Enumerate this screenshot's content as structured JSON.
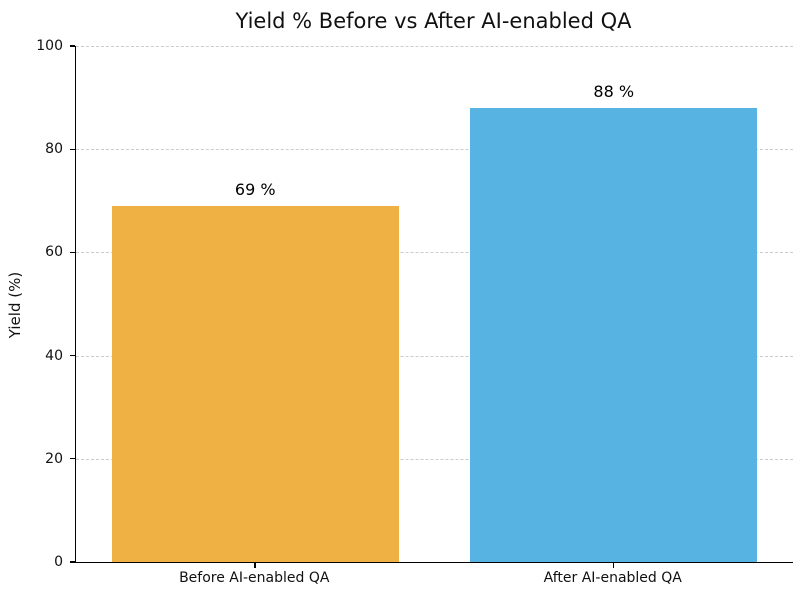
{
  "chart_data": {
    "type": "bar",
    "title": "Yield % Before vs After AI-enabled QA",
    "xlabel": "",
    "ylabel": "Yield (%)",
    "categories": [
      "Before AI-enabled QA",
      "After AI-enabled QA"
    ],
    "values": [
      69,
      88
    ],
    "value_labels": [
      "69 %",
      "88 %"
    ],
    "bar_colors": [
      "#F0B144",
      "#57B3E2"
    ],
    "ylim": [
      0,
      100
    ],
    "yticks": [
      0,
      20,
      40,
      60,
      80,
      100
    ],
    "grid": "horizontal-dashed",
    "legend": "none"
  },
  "colors": {
    "bar_before": "#F0B144",
    "bar_after": "#57B3E2",
    "gridline": "#cccccc",
    "spine": "#000000",
    "text": "#111111",
    "background": "#ffffff"
  }
}
